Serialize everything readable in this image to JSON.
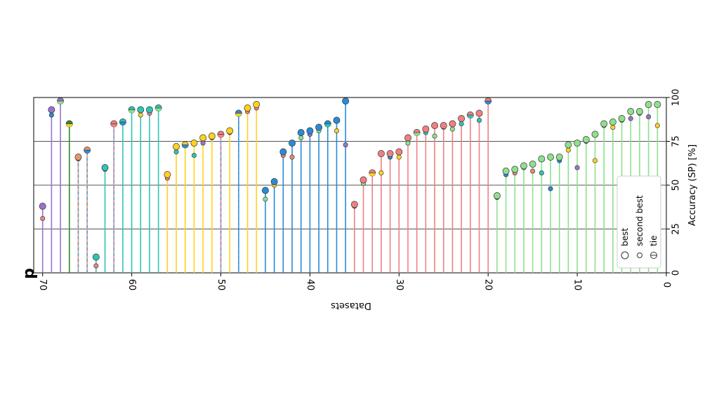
{
  "chart_data": {
    "type": "scatter",
    "subtype": "lollipop",
    "orientation": "rotated-90-clockwise",
    "panel_label": "d",
    "xlabel": "Datasets",
    "ylabel": "Accuracy (SP) [%]",
    "xlim": [
      0,
      71
    ],
    "ylim": [
      0,
      100
    ],
    "xticks": [
      "0",
      "10",
      "20",
      "30",
      "40",
      "50",
      "60",
      "70"
    ],
    "yticks": [
      "0",
      "25",
      "50",
      "75",
      "100"
    ],
    "grid": "horizontal at 25, 50, 75",
    "legend": {
      "position": "bottom-right",
      "entries": [
        "best",
        "second best",
        "tie"
      ]
    },
    "colors": {
      "purple": "#9b72cb",
      "green": "#2e8b2e",
      "orange": "#e8956b",
      "teal": "#2ec4b6",
      "salmon": "#f08080",
      "gold": "#ffd21f",
      "blue": "#2a8ad6",
      "lightgreen": "#8ee08e"
    },
    "series": [
      {
        "x": 70,
        "best": 38,
        "second": 31,
        "color": "purple",
        "second_color": "salmon",
        "dashed": false
      },
      {
        "x": 69,
        "best": 93,
        "second": 90,
        "color": "purple",
        "second_color": "blue",
        "dashed": false
      },
      {
        "x": 68,
        "best": 98,
        "tie": true,
        "color": "purple",
        "second_color": "lightgreen",
        "dashed": false
      },
      {
        "x": 67,
        "best": 85,
        "tie": true,
        "color": "green",
        "second_color": "gold",
        "dashed": false
      },
      {
        "x": 66,
        "best": 66,
        "second": 65,
        "color": "orange",
        "second_color": "salmon",
        "dashed": true
      },
      {
        "x": 65,
        "best": 70,
        "tie": true,
        "color": "orange",
        "second_color": "blue",
        "dashed": true
      },
      {
        "x": 64,
        "best": 9,
        "second": 4,
        "color": "teal",
        "second_color": "salmon",
        "dashed": false
      },
      {
        "x": 63,
        "best": 60,
        "second": 59,
        "color": "teal",
        "second_color": "lightgreen",
        "dashed": false
      },
      {
        "x": 62,
        "best": 85,
        "tie": true,
        "color": "salmon",
        "second_color": "salmon",
        "dashed": true
      },
      {
        "x": 61,
        "best": 86,
        "tie": true,
        "color": "teal",
        "second_color": "blue",
        "dashed": false
      },
      {
        "x": 60,
        "best": 93,
        "tie": true,
        "color": "teal",
        "second_color": "lightgreen",
        "dashed": false
      },
      {
        "x": 59,
        "best": 93,
        "second": 90,
        "color": "teal",
        "second_color": "gold",
        "dashed": false
      },
      {
        "x": 58,
        "best": 93,
        "second": 91,
        "color": "teal",
        "second_color": "salmon",
        "dashed": false
      },
      {
        "x": 57,
        "best": 94,
        "tie": true,
        "color": "teal",
        "second_color": "lightgreen",
        "dashed": false
      },
      {
        "x": 56,
        "best": 56,
        "second": 54,
        "color": "gold",
        "second_color": "salmon",
        "dashed": false
      },
      {
        "x": 55,
        "best": 72,
        "second": 69,
        "color": "gold",
        "second_color": "teal",
        "dashed": false
      },
      {
        "x": 54,
        "best": 73,
        "tie": true,
        "color": "gold",
        "second_color": "blue",
        "dashed": false
      },
      {
        "x": 53,
        "best": 74,
        "second": 67,
        "color": "gold",
        "second_color": "teal",
        "dashed": false
      },
      {
        "x": 52,
        "best": 77,
        "second": 74,
        "color": "gold",
        "second_color": "purple",
        "dashed": false
      },
      {
        "x": 51,
        "best": 78,
        "second": 77,
        "color": "gold",
        "second_color": "lightgreen",
        "dashed": false
      },
      {
        "x": 50,
        "best": 79,
        "tie": true,
        "color": "salmon",
        "second_color": "salmon",
        "dashed": true
      },
      {
        "x": 49,
        "best": 81,
        "second": 80,
        "color": "gold",
        "second_color": "blue",
        "dashed": false
      },
      {
        "x": 48,
        "best": 91,
        "tie": true,
        "color": "blue",
        "second_color": "gold",
        "dashed": true
      },
      {
        "x": 47,
        "best": 94,
        "second": 92,
        "color": "gold",
        "second_color": "salmon",
        "dashed": false
      },
      {
        "x": 46,
        "best": 96,
        "second": 94,
        "color": "gold",
        "second_color": "salmon",
        "dashed": false
      },
      {
        "x": 45,
        "best": 47,
        "second": 42,
        "color": "blue",
        "second_color": "lightgreen",
        "dashed": false
      },
      {
        "x": 44,
        "best": 52,
        "second": 50,
        "color": "blue",
        "second_color": "gold",
        "dashed": false
      },
      {
        "x": 43,
        "best": 69,
        "second": 67,
        "color": "blue",
        "second_color": "salmon",
        "dashed": false
      },
      {
        "x": 42,
        "best": 74,
        "second": 66,
        "color": "blue",
        "second_color": "salmon",
        "dashed": false
      },
      {
        "x": 41,
        "best": 80,
        "second": 77,
        "color": "blue",
        "second_color": "lightgreen",
        "dashed": false
      },
      {
        "x": 40,
        "best": 81,
        "second": 79,
        "color": "blue",
        "second_color": "purple",
        "dashed": false
      },
      {
        "x": 39,
        "best": 83,
        "second": 81,
        "color": "blue",
        "second_color": "lightgreen",
        "dashed": false
      },
      {
        "x": 38,
        "best": 85,
        "tie": true,
        "color": "blue",
        "second_color": "teal",
        "dashed": false
      },
      {
        "x": 37,
        "best": 87,
        "second": 81,
        "color": "blue",
        "second_color": "gold",
        "dashed": false
      },
      {
        "x": 36,
        "best": 98,
        "second": 73,
        "color": "blue",
        "second_color": "purple",
        "dashed": false
      },
      {
        "x": 35,
        "best": 39,
        "second": 38,
        "color": "salmon",
        "second_color": "blue",
        "dashed": false
      },
      {
        "x": 34,
        "best": 53,
        "second": 51,
        "color": "salmon",
        "second_color": "lightgreen",
        "dashed": false
      },
      {
        "x": 33,
        "best": 57,
        "tie": true,
        "color": "salmon",
        "second_color": "gold",
        "dashed": false
      },
      {
        "x": 32,
        "best": 68,
        "second": 57,
        "color": "salmon",
        "second_color": "gold",
        "dashed": false
      },
      {
        "x": 31,
        "best": 68,
        "second": 66,
        "color": "salmon",
        "second_color": "blue",
        "dashed": false
      },
      {
        "x": 30,
        "best": 69,
        "second": 66,
        "color": "salmon",
        "second_color": "gold",
        "dashed": false
      },
      {
        "x": 29,
        "best": 77,
        "second": 74,
        "color": "salmon",
        "second_color": "lightgreen",
        "dashed": false
      },
      {
        "x": 28,
        "best": 80,
        "tie": true,
        "color": "salmon",
        "second_color": "lightgreen",
        "dashed": false
      },
      {
        "x": 27,
        "best": 82,
        "second": 80,
        "color": "salmon",
        "second_color": "teal",
        "dashed": false
      },
      {
        "x": 26,
        "best": 84,
        "second": 78,
        "color": "salmon",
        "second_color": "lightgreen",
        "dashed": false
      },
      {
        "x": 25,
        "best": 84,
        "second": 83,
        "color": "salmon",
        "second_color": "lightgreen",
        "dashed": false
      },
      {
        "x": 24,
        "best": 85,
        "second": 82,
        "color": "salmon",
        "second_color": "lightgreen",
        "dashed": false
      },
      {
        "x": 23,
        "best": 88,
        "second": 85,
        "color": "salmon",
        "second_color": "teal",
        "dashed": false
      },
      {
        "x": 22,
        "best": 90,
        "tie": true,
        "color": "salmon",
        "second_color": "teal",
        "dashed": false
      },
      {
        "x": 21,
        "best": 91,
        "second": 87,
        "color": "salmon",
        "second_color": "teal",
        "dashed": false
      },
      {
        "x": 20,
        "best": 98,
        "tie": true,
        "color": "salmon",
        "second_color": "blue",
        "dashed": false
      },
      {
        "x": 19,
        "best": 44,
        "second": 43,
        "color": "lightgreen",
        "second_color": "purple",
        "dashed": false
      },
      {
        "x": 18,
        "best": 58,
        "second": 56,
        "color": "lightgreen",
        "second_color": "blue",
        "dashed": false
      },
      {
        "x": 17,
        "best": 59,
        "second": 57,
        "color": "lightgreen",
        "second_color": "salmon",
        "dashed": false
      },
      {
        "x": 16,
        "best": 61,
        "second": 60,
        "color": "lightgreen",
        "second_color": "salmon",
        "dashed": false
      },
      {
        "x": 15,
        "best": 62,
        "second": 58,
        "color": "lightgreen",
        "second_color": "salmon",
        "dashed": false
      },
      {
        "x": 14,
        "best": 65,
        "second": 57,
        "color": "lightgreen",
        "second_color": "teal",
        "dashed": false
      },
      {
        "x": 13,
        "best": 66,
        "second": 48,
        "color": "lightgreen",
        "second_color": "blue",
        "dashed": false
      },
      {
        "x": 12,
        "best": 66,
        "second": 64,
        "color": "lightgreen",
        "second_color": "blue",
        "dashed": false
      },
      {
        "x": 11,
        "best": 73,
        "second": 70,
        "color": "lightgreen",
        "second_color": "gold",
        "dashed": false
      },
      {
        "x": 10,
        "best": 74,
        "second": 60,
        "color": "lightgreen",
        "second_color": "purple",
        "dashed": false
      },
      {
        "x": 9,
        "best": 76,
        "second": 75,
        "color": "lightgreen",
        "second_color": "blue",
        "dashed": false
      },
      {
        "x": 8,
        "best": 79,
        "second": 64,
        "color": "lightgreen",
        "second_color": "gold",
        "dashed": false
      },
      {
        "x": 7,
        "best": 85,
        "second": 84,
        "color": "lightgreen",
        "second_color": "salmon",
        "dashed": false
      },
      {
        "x": 6,
        "best": 86,
        "second": 83,
        "color": "lightgreen",
        "second_color": "gold",
        "dashed": false
      },
      {
        "x": 5,
        "best": 88,
        "second": 87,
        "color": "lightgreen",
        "second_color": "gold",
        "dashed": false
      },
      {
        "x": 4,
        "best": 92,
        "second": 88,
        "color": "lightgreen",
        "second_color": "purple",
        "dashed": false
      },
      {
        "x": 3,
        "best": 92,
        "second": 91,
        "color": "lightgreen",
        "second_color": "salmon",
        "dashed": false
      },
      {
        "x": 2,
        "best": 96,
        "second": 89,
        "color": "lightgreen",
        "second_color": "purple",
        "dashed": false
      },
      {
        "x": 1,
        "best": 96,
        "second": 84,
        "color": "lightgreen",
        "second_color": "gold",
        "dashed": false
      }
    ]
  }
}
